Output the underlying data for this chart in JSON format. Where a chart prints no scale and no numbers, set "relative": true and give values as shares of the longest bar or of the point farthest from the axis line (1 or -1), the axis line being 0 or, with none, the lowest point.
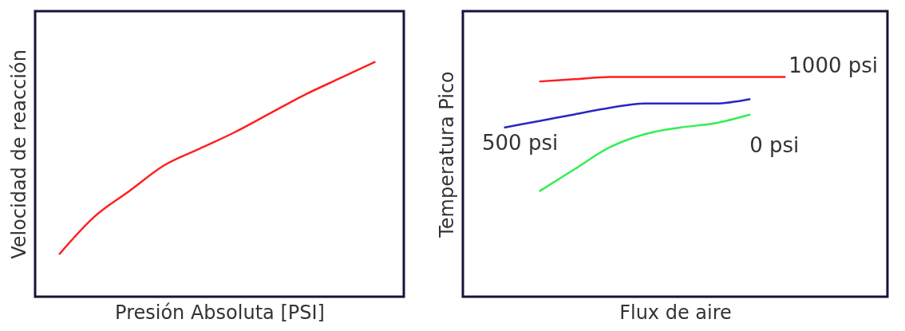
{
  "chart_data": [
    {
      "type": "line",
      "xlabel": "Presión Absoluta [PSI]",
      "ylabel": "Velocidad de reacción",
      "relative": true,
      "legend": false,
      "grid": false,
      "categories": [
        null,
        null,
        null,
        null,
        null,
        null,
        null,
        null,
        null,
        null
      ],
      "series": [
        {
          "color": "#ff2020",
          "values": [
            0.18,
            0.34,
            0.45,
            0.56,
            0.63,
            0.7,
            0.78,
            0.86,
            0.93,
            1
          ]
        }
      ]
    },
    {
      "type": "line",
      "xlabel": "Flux de aire",
      "ylabel": "Temperatura Pico",
      "relative": true,
      "legend": false,
      "grid": false,
      "categories": [
        null,
        null,
        null,
        null,
        null,
        null,
        null,
        null,
        null
      ],
      "series": [
        {
          "name": "1000 psi",
          "color": "#ff2020",
          "values": [
            null,
            0.98,
            0.99,
            1,
            1,
            1,
            1,
            1,
            1
          ]
        },
        {
          "name": "500 psi",
          "color": "#2828c0",
          "values": [
            0.77,
            0.8,
            0.83,
            0.86,
            0.88,
            0.88,
            0.88,
            0.9,
            null
          ]
        },
        {
          "name": "0 psi",
          "color": "#33ee55",
          "values": [
            null,
            0.48,
            0.58,
            0.68,
            0.74,
            0.77,
            0.79,
            0.83,
            null
          ]
        }
      ]
    }
  ]
}
